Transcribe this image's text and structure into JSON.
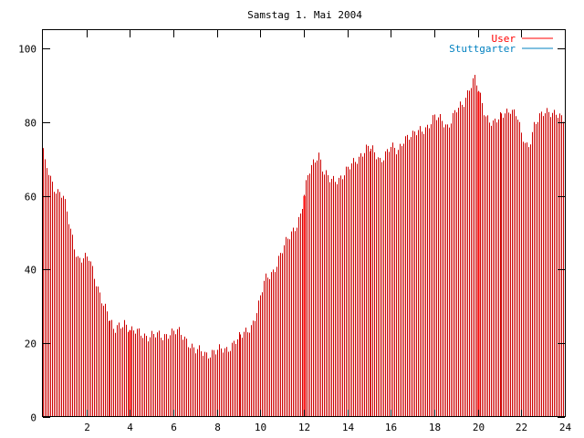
{
  "chart_data": {
    "type": "bar",
    "title": "Samstag 1. Mai 2004",
    "xlabel": "",
    "ylabel": "",
    "xlim": [
      0,
      24
    ],
    "ylim": [
      0,
      105
    ],
    "xticks": [
      2,
      4,
      6,
      8,
      10,
      12,
      14,
      16,
      18,
      20,
      22,
      24
    ],
    "yticks": [
      0,
      20,
      40,
      60,
      80,
      100
    ],
    "x_tick_labels": [
      "2",
      "4",
      "6",
      "8",
      "10",
      "12",
      "14",
      "16",
      "18",
      "20",
      "22",
      "24"
    ],
    "y_tick_labels": [
      "0",
      "20",
      "40",
      "60",
      "80",
      "100"
    ],
    "grid": false,
    "legend": "top-right",
    "colors": {
      "user": "#cc0000",
      "user_strong": "#ff0000",
      "stuttgarter": "#0080c0",
      "axis": "#000000"
    },
    "series": [
      {
        "name": "User",
        "style": "impulses",
        "keypoints": [
          [
            0.0,
            73
          ],
          [
            0.05,
            69
          ],
          [
            0.25,
            66
          ],
          [
            0.45,
            62
          ],
          [
            0.9,
            61
          ],
          [
            1.1,
            55
          ],
          [
            1.25,
            50
          ],
          [
            1.45,
            45
          ],
          [
            1.6,
            43
          ],
          [
            1.85,
            44
          ],
          [
            2.1,
            43
          ],
          [
            2.3,
            38
          ],
          [
            2.55,
            34
          ],
          [
            2.85,
            30
          ],
          [
            3.05,
            26
          ],
          [
            3.3,
            23
          ],
          [
            3.5,
            25
          ],
          [
            3.75,
            26
          ],
          [
            4.05,
            23
          ],
          [
            4.5,
            23
          ],
          [
            4.8,
            22
          ],
          [
            5.5,
            22
          ],
          [
            5.8,
            23
          ],
          [
            6.2,
            23
          ],
          [
            6.6,
            21
          ],
          [
            7.0,
            18
          ],
          [
            7.5,
            17
          ],
          [
            7.8,
            18
          ],
          [
            8.4,
            18
          ],
          [
            8.8,
            21
          ],
          [
            9.2,
            22
          ],
          [
            9.6,
            25
          ],
          [
            9.9,
            30
          ],
          [
            10.2,
            37
          ],
          [
            10.6,
            40
          ],
          [
            11.0,
            45
          ],
          [
            11.4,
            50
          ],
          [
            11.6,
            52
          ],
          [
            11.85,
            55
          ],
          [
            12.0,
            60
          ],
          [
            12.2,
            66
          ],
          [
            12.4,
            69
          ],
          [
            12.65,
            72
          ],
          [
            12.9,
            66
          ],
          [
            13.2,
            64
          ],
          [
            13.6,
            65
          ],
          [
            14.0,
            67
          ],
          [
            14.4,
            70
          ],
          [
            14.8,
            73
          ],
          [
            15.2,
            72
          ],
          [
            15.5,
            70
          ],
          [
            16.0,
            73
          ],
          [
            16.3,
            72
          ],
          [
            16.6,
            76
          ],
          [
            17.0,
            76
          ],
          [
            17.3,
            78
          ],
          [
            17.7,
            79
          ],
          [
            18.0,
            81
          ],
          [
            18.3,
            81
          ],
          [
            18.6,
            79
          ],
          [
            19.0,
            83
          ],
          [
            19.3,
            85
          ],
          [
            19.6,
            90
          ],
          [
            19.85,
            92
          ],
          [
            20.05,
            87
          ],
          [
            20.3,
            82
          ],
          [
            20.7,
            80
          ],
          [
            21.0,
            81
          ],
          [
            21.5,
            84
          ],
          [
            21.8,
            82
          ],
          [
            22.0,
            76
          ],
          [
            22.3,
            73
          ],
          [
            22.6,
            80
          ],
          [
            23.0,
            82
          ],
          [
            23.3,
            83
          ],
          [
            23.6,
            83
          ],
          [
            23.9,
            80
          ],
          [
            24.0,
            82
          ]
        ],
        "emphasized_x": [
          4.0,
          12.0,
          20.0
        ]
      },
      {
        "name": "Stuttgarter",
        "style": "impulses",
        "keypoints": [
          [
            0.0,
            0
          ],
          [
            24.0,
            0
          ]
        ]
      }
    ]
  }
}
